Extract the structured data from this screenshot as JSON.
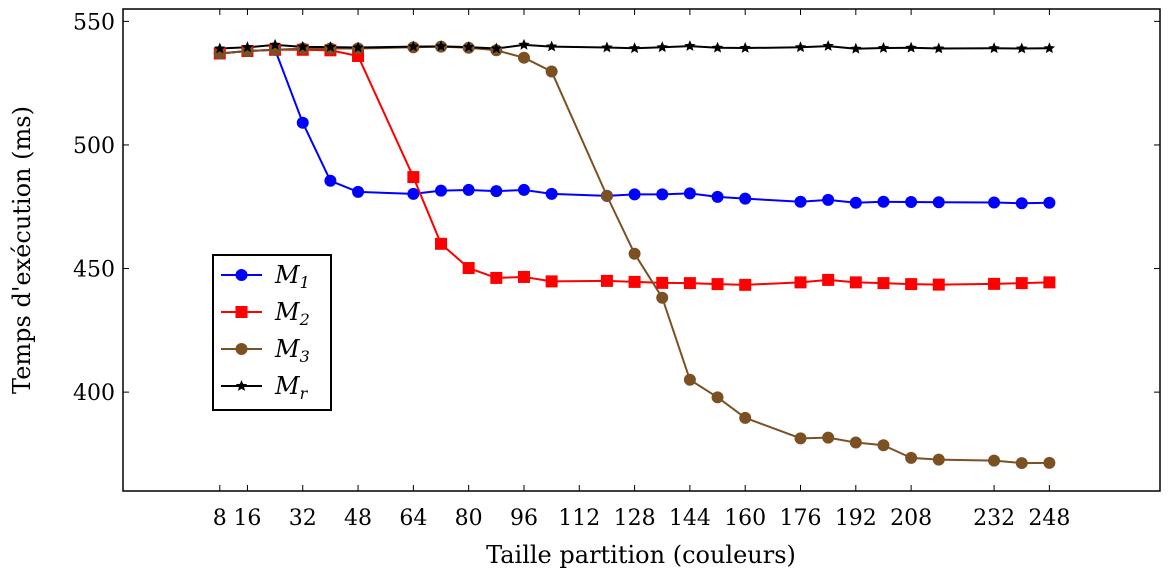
{
  "chart_data": {
    "type": "line",
    "title": "",
    "xlabel": "Taille partition (couleurs)",
    "ylabel": "Temps d'exécution (ms)",
    "xlim": [
      -20,
      280
    ],
    "ylim": [
      360,
      555
    ],
    "xticks": [
      8,
      16,
      32,
      48,
      64,
      80,
      96,
      112,
      128,
      144,
      160,
      176,
      192,
      208,
      232,
      248
    ],
    "yticks": [
      400,
      450,
      500,
      550
    ],
    "grid": false,
    "legend_position": "center-left",
    "series": [
      {
        "name": "M",
        "subscript": "1",
        "color": "#0000ff",
        "marker": "circle",
        "points": [
          [
            8,
            537
          ],
          [
            16,
            538
          ],
          [
            24,
            538.5
          ],
          [
            32,
            509
          ],
          [
            40,
            485.5
          ],
          [
            48,
            481
          ],
          [
            64,
            480.2
          ],
          [
            72,
            481.5
          ],
          [
            80,
            481.8
          ],
          [
            88,
            481.3
          ],
          [
            96,
            481.8
          ],
          [
            104,
            480.2
          ],
          [
            120,
            479.4
          ],
          [
            128,
            480
          ],
          [
            136,
            480
          ],
          [
            144,
            480.4
          ],
          [
            152,
            479
          ],
          [
            160,
            478.3
          ],
          [
            176,
            477
          ],
          [
            184,
            477.8
          ],
          [
            192,
            476.6
          ],
          [
            200,
            477
          ],
          [
            208,
            476.9
          ],
          [
            216,
            476.8
          ],
          [
            232,
            476.7
          ],
          [
            240,
            476.4
          ],
          [
            248,
            476.6
          ]
        ]
      },
      {
        "name": "M",
        "subscript": "2",
        "color": "#ff0000",
        "marker": "square",
        "points": [
          [
            8,
            537
          ],
          [
            16,
            538
          ],
          [
            24,
            538.5
          ],
          [
            32,
            538.5
          ],
          [
            40,
            538.3
          ],
          [
            48,
            536
          ],
          [
            64,
            487
          ],
          [
            72,
            460
          ],
          [
            80,
            450.2
          ],
          [
            88,
            446.2
          ],
          [
            96,
            446.6
          ],
          [
            104,
            444.8
          ],
          [
            120,
            445
          ],
          [
            128,
            444.6
          ],
          [
            136,
            444.2
          ],
          [
            144,
            444.1
          ],
          [
            152,
            443.7
          ],
          [
            160,
            443.4
          ],
          [
            176,
            444.4
          ],
          [
            184,
            445.4
          ],
          [
            192,
            444.4
          ],
          [
            200,
            444.1
          ],
          [
            208,
            443.7
          ],
          [
            216,
            443.5
          ],
          [
            232,
            443.8
          ],
          [
            240,
            444.1
          ],
          [
            248,
            444.4
          ]
        ]
      },
      {
        "name": "M",
        "subscript": "3",
        "color": "#7b5124",
        "marker": "circle",
        "points": [
          [
            8,
            537
          ],
          [
            16,
            538
          ],
          [
            24,
            538.5
          ],
          [
            32,
            539
          ],
          [
            40,
            539
          ],
          [
            48,
            539
          ],
          [
            64,
            539.5
          ],
          [
            72,
            539.8
          ],
          [
            80,
            539.3
          ],
          [
            88,
            538.3
          ],
          [
            96,
            535.3
          ],
          [
            104,
            529.7
          ],
          [
            120,
            479.4
          ],
          [
            128,
            456
          ],
          [
            136,
            438.2
          ],
          [
            144,
            405
          ],
          [
            152,
            397.9
          ],
          [
            160,
            389.6
          ],
          [
            176,
            381.3
          ],
          [
            184,
            381.6
          ],
          [
            192,
            379.6
          ],
          [
            200,
            378.5
          ],
          [
            208,
            373.4
          ],
          [
            216,
            372.7
          ],
          [
            232,
            372.3
          ],
          [
            240,
            371.3
          ],
          [
            248,
            371.4
          ]
        ]
      },
      {
        "name": "M",
        "subscript": "r",
        "color": "#000000",
        "marker": "star",
        "points": [
          [
            8,
            539
          ],
          [
            16,
            539.5
          ],
          [
            24,
            540.5
          ],
          [
            32,
            539.7
          ],
          [
            40,
            539.6
          ],
          [
            48,
            539.4
          ],
          [
            64,
            539.8
          ],
          [
            72,
            539.9
          ],
          [
            80,
            539.6
          ],
          [
            88,
            539
          ],
          [
            96,
            540.5
          ],
          [
            104,
            539.8
          ],
          [
            120,
            539.4
          ],
          [
            128,
            539.1
          ],
          [
            136,
            539.5
          ],
          [
            144,
            540
          ],
          [
            152,
            539.3
          ],
          [
            160,
            539.2
          ],
          [
            176,
            539.5
          ],
          [
            184,
            540
          ],
          [
            192,
            538.9
          ],
          [
            200,
            539.2
          ],
          [
            208,
            539.3
          ],
          [
            216,
            539
          ],
          [
            232,
            539.1
          ],
          [
            240,
            539
          ],
          [
            248,
            539.1
          ]
        ]
      }
    ]
  }
}
